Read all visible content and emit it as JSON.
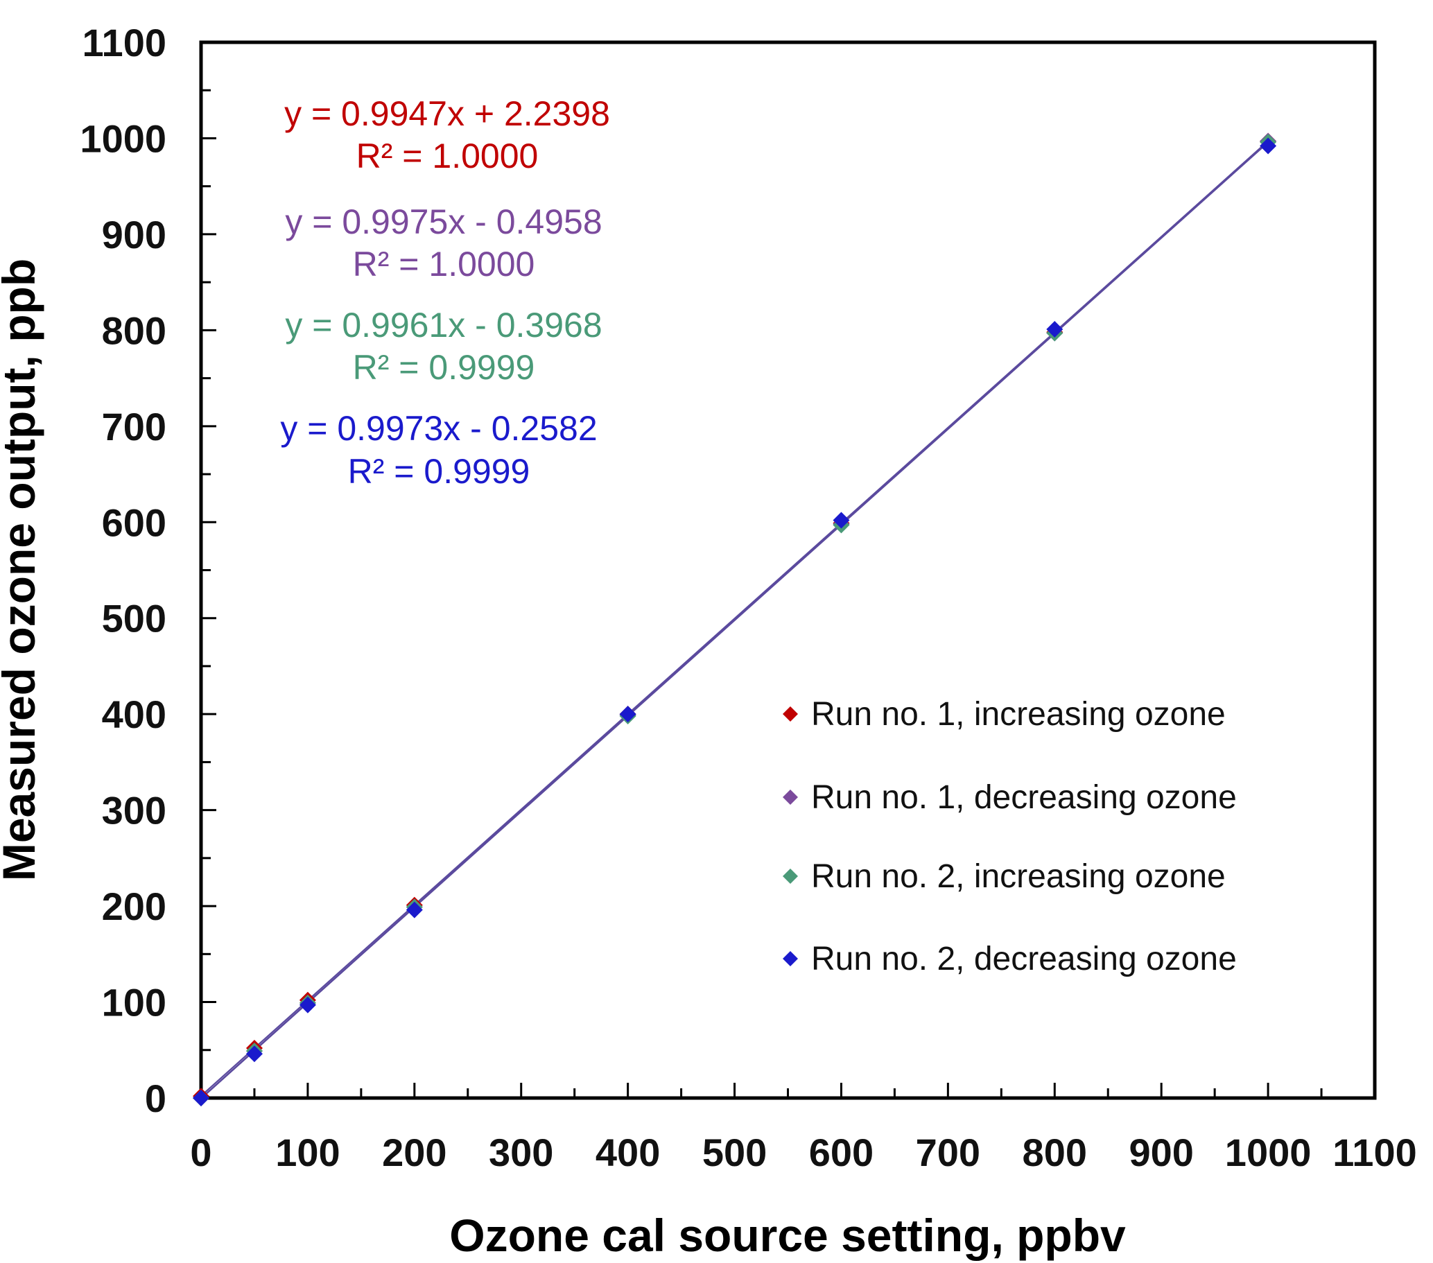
{
  "chart_data": {
    "type": "scatter",
    "xlabel": "Ozone cal source setting, ppbv",
    "ylabel": "Measured ozone output, ppb",
    "xlim": [
      0,
      1100
    ],
    "ylim": [
      0,
      1100
    ],
    "x_ticks": [
      "0",
      "100",
      "200",
      "300",
      "400",
      "500",
      "600",
      "700",
      "800",
      "900",
      "1000",
      "1100"
    ],
    "y_ticks": [
      "0",
      "100",
      "200",
      "300",
      "400",
      "500",
      "600",
      "700",
      "800",
      "900",
      "1000",
      "1100"
    ],
    "grid": false,
    "legend_position": "lower-right",
    "series": [
      {
        "name": "Run no. 1, increasing ozone",
        "color": "#c00000",
        "x": [
          0,
          50,
          100,
          200,
          400,
          600,
          800,
          1000
        ],
        "y": [
          2,
          52,
          102,
          201,
          400,
          599,
          798,
          997
        ],
        "equation": "y = 0.9947x + 2.2398",
        "r2": "R² = 1.0000"
      },
      {
        "name": "Run no. 1, decreasing ozone",
        "color": "#7b4a9c",
        "x": [
          0,
          50,
          100,
          200,
          400,
          600,
          800,
          1000
        ],
        "y": [
          0,
          49,
          99,
          199,
          399,
          598,
          797,
          997
        ],
        "equation": "y = 0.9975x - 0.4958",
        "r2": "R² = 1.0000"
      },
      {
        "name": "Run no. 2, increasing ozone",
        "color": "#4a9a78",
        "x": [
          0,
          50,
          100,
          200,
          400,
          600,
          800,
          1000
        ],
        "y": [
          0,
          49,
          99,
          199,
          398,
          597,
          797,
          996
        ],
        "equation": "y = 0.9961x - 0.3968",
        "r2": "R² = 0.9999"
      },
      {
        "name": "Run no. 2, decreasing ozone",
        "color": "#1a1acc",
        "x": [
          0,
          50,
          100,
          200,
          400,
          600,
          800,
          1000
        ],
        "y": [
          0,
          46,
          97,
          196,
          400,
          602,
          801,
          992
        ],
        "equation": "y = 0.9973x - 0.2582",
        "r2": "R² = 0.9999"
      }
    ],
    "trendline_color": "#5b4a9e"
  }
}
